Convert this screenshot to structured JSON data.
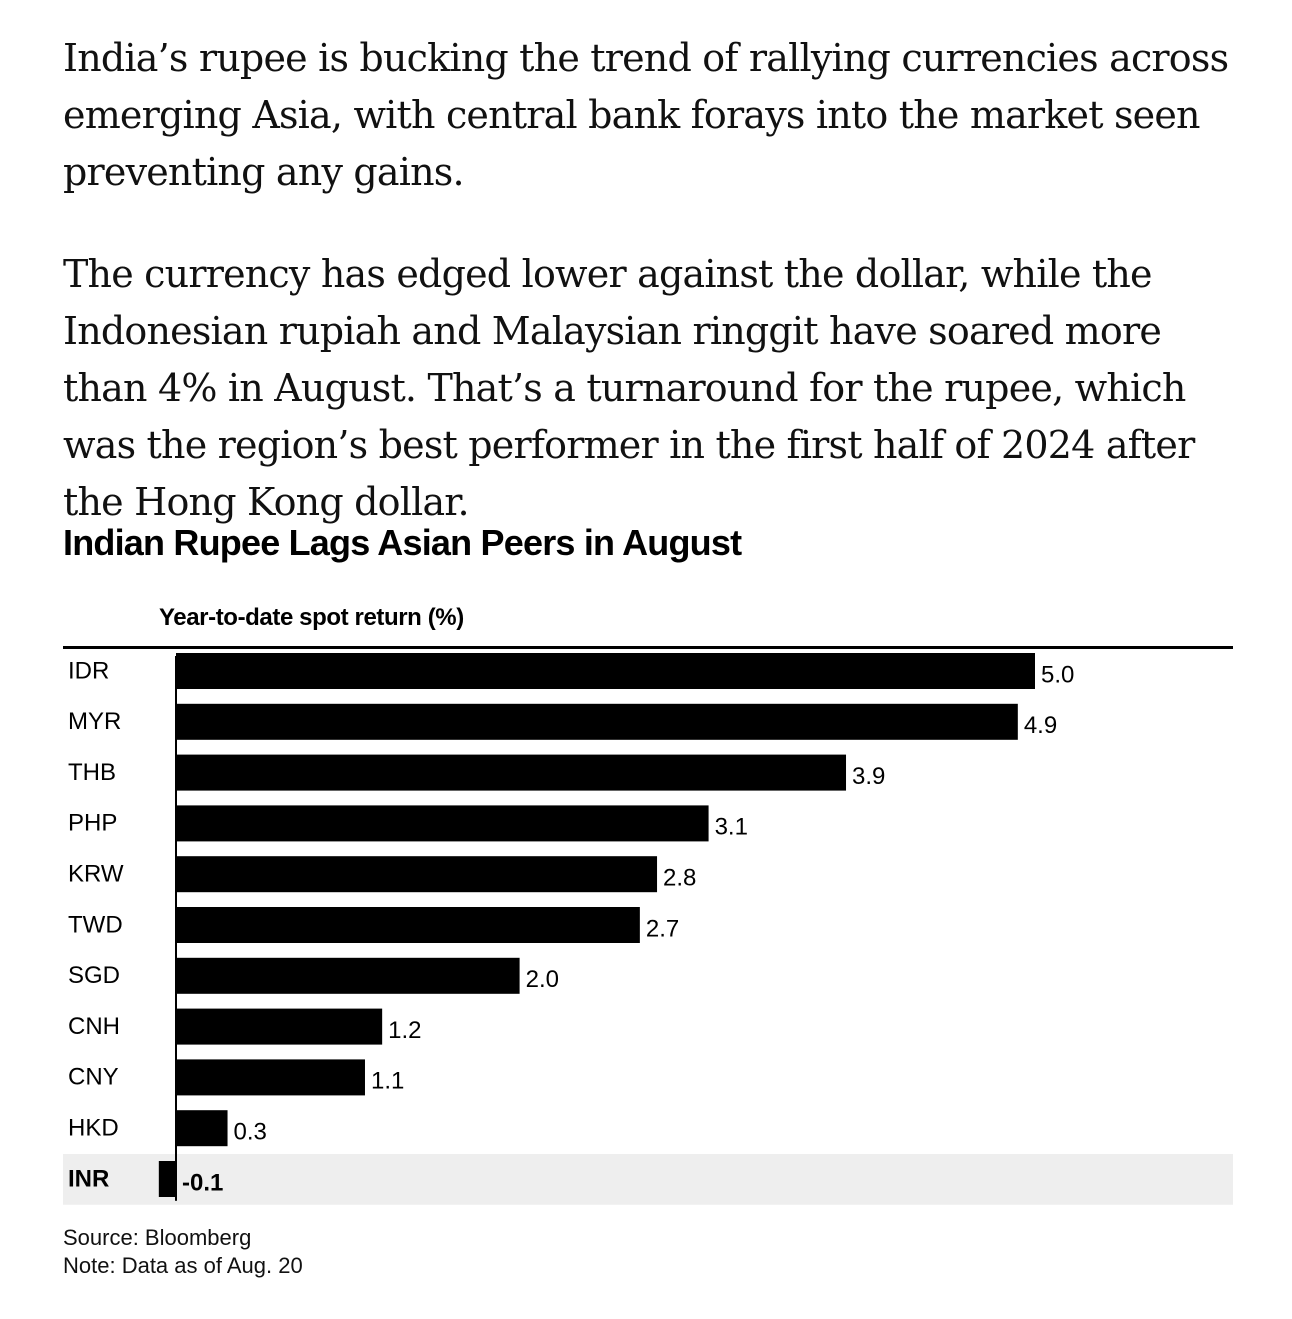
{
  "article": {
    "paragraphs": [
      "India’s rupee is bucking the trend of rallying currencies across emerging Asia, with central bank forays into the market seen preventing any gains.",
      "The currency has edged lower against the dollar, while the Indonesian rupiah and Malaysian ringgit have soared more than 4% in August. That’s a turnaround for the rupee, which was the region’s best performer in the first half of 2024 after the Hong Kong dollar."
    ]
  },
  "chart_data": {
    "type": "bar",
    "orientation": "horizontal",
    "title": "Indian Rupee Lags Asian Peers in August",
    "subtitle": "Year-to-date spot return (%)",
    "categories": [
      "IDR",
      "MYR",
      "THB",
      "PHP",
      "KRW",
      "TWD",
      "SGD",
      "CNH",
      "CNY",
      "HKD",
      "INR"
    ],
    "values": [
      5.0,
      4.9,
      3.9,
      3.1,
      2.8,
      2.7,
      2.0,
      1.2,
      1.1,
      0.3,
      -0.1
    ],
    "value_labels": [
      "5.0",
      "4.9",
      "3.9",
      "3.1",
      "2.8",
      "2.7",
      "2.0",
      "1.2",
      "1.1",
      "0.3",
      "-0.1"
    ],
    "highlighted_category": "INR",
    "xlim": [
      -0.1,
      5.0
    ],
    "grid": false,
    "legend": "none",
    "colors": {
      "bar": "#000000",
      "highlight_background": "#eeeeee"
    }
  },
  "footer": {
    "source": "Source: Bloomberg",
    "note": "Note: Data as of Aug. 20"
  }
}
